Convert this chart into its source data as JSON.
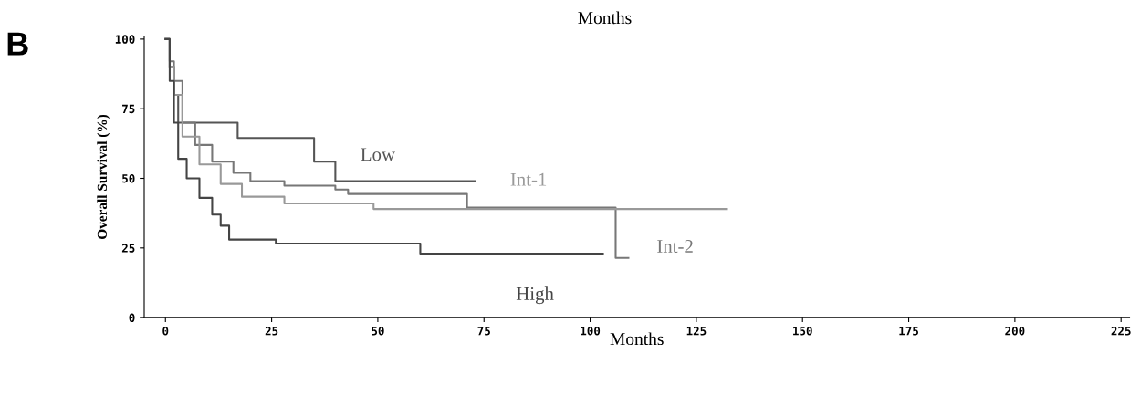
{
  "chart_data": {
    "type": "step",
    "xlabel": "Months",
    "ylabel": "Overall Survival (%)",
    "xlim": [
      -5,
      227
    ],
    "ylim": [
      0,
      101
    ],
    "xticks": [
      0,
      25,
      50,
      75,
      100,
      125,
      150,
      175,
      200,
      225
    ],
    "yticks": [
      0,
      25,
      50,
      75,
      100
    ],
    "grid": false,
    "marker": "none",
    "line_style": "solid",
    "series": [
      {
        "name": "Low",
        "color": "#555555",
        "x": [
          0,
          1,
          2,
          3,
          17,
          35,
          40,
          73
        ],
        "values": [
          100,
          90,
          80,
          70,
          64.5,
          56,
          49,
          49
        ]
      },
      {
        "name": "Int-2",
        "color": "#777777",
        "x": [
          0,
          1,
          2,
          4,
          7,
          11,
          16,
          20,
          28,
          40,
          43,
          71,
          106,
          109
        ],
        "values": [
          100,
          92,
          85,
          70,
          62,
          56,
          52,
          49,
          47.4,
          46,
          44.4,
          39.5,
          21.4,
          21.4
        ]
      },
      {
        "name": "Int-1",
        "color": "#999999",
        "x": [
          0,
          1,
          2,
          4,
          8,
          13,
          18,
          28,
          49,
          132
        ],
        "values": [
          100,
          90,
          80,
          65,
          55,
          48,
          43.4,
          41,
          39,
          39
        ]
      },
      {
        "name": "High",
        "color": "#444444",
        "x": [
          0,
          1,
          2,
          3,
          5,
          8,
          11,
          13,
          15,
          26,
          60,
          103
        ],
        "values": [
          100,
          85,
          70,
          57,
          50,
          43,
          37,
          33,
          28,
          26.6,
          23,
          23
        ]
      }
    ],
    "annotations": [
      "B",
      "Months"
    ]
  }
}
